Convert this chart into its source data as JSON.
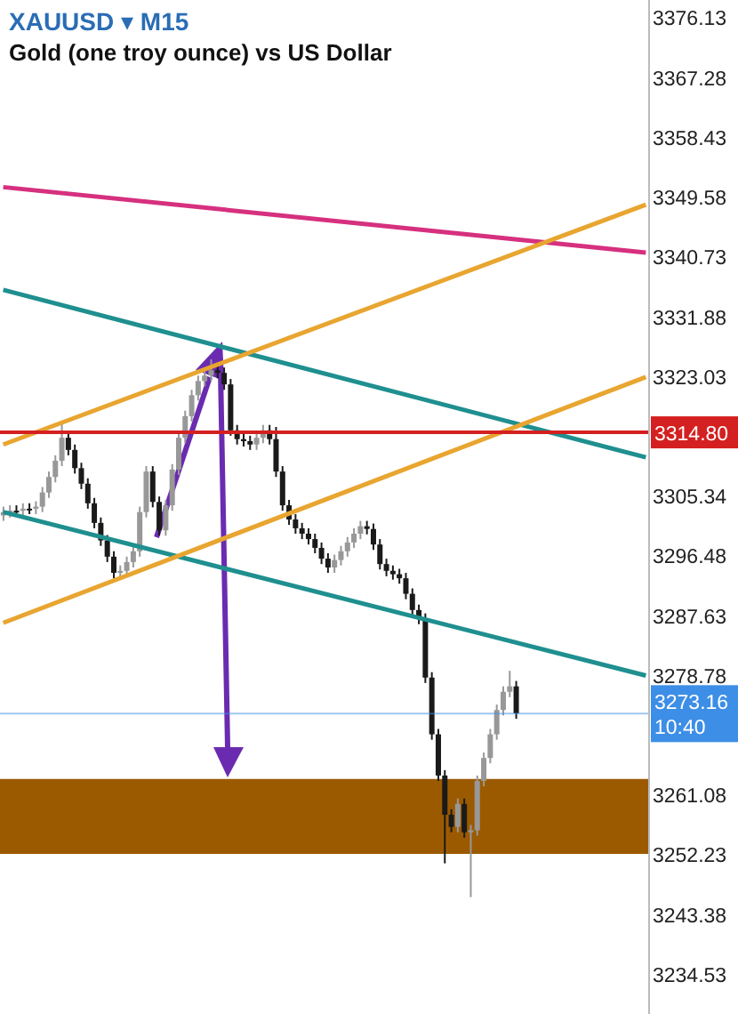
{
  "chart_data": {
    "type": "candlestick",
    "title": "XAUUSD ▾ M15",
    "subtitle": "Gold (one troy ounce) vs US Dollar",
    "colors": [
      "#989898",
      "#989898",
      "#1a1a1a",
      "#989898",
      "#1a1a1a",
      "#989898",
      "#989898",
      "#989898",
      "#989898",
      "#989898",
      "#1a1a1a",
      "#1a1a1a",
      "#1a1a1a",
      "#1a1a1a",
      "#1a1a1a",
      "#1a1a1a",
      "#1a1a1a",
      "#1a1a1a",
      "#989898",
      "#989898",
      "#989898",
      "#989898",
      "#989898",
      "#1a1a1a",
      "#1a1a1a",
      "#989898",
      "#989898",
      "#989898",
      "#989898",
      "#989898",
      "#989898",
      "#989898",
      "#989898",
      "#1a1a1a",
      "#1a1a1a",
      "#1a1a1a",
      "#1a1a1a",
      "#1a1a1a",
      "#1a1a1a",
      "#989898",
      "#989898",
      "#1a1a1a",
      "#1a1a1a",
      "#1a1a1a",
      "#1a1a1a",
      "#1a1a1a",
      "#1a1a1a",
      "#1a1a1a",
      "#1a1a1a",
      "#1a1a1a",
      "#1a1a1a",
      "#989898",
      "#989898",
      "#989898",
      "#989898",
      "#989898",
      "#1a1a1a",
      "#1a1a1a",
      "#1a1a1a",
      "#1a1a1a",
      "#1a1a1a",
      "#1a1a1a",
      "#1a1a1a",
      "#1a1a1a",
      "#1a1a1a",
      "#1a1a1a",
      "#1a1a1a",
      "#1a1a1a",
      "#1a1a1a",
      "#1a1a1a",
      "#989898",
      "#1a1a1a",
      "#989898",
      "#989898",
      "#989898",
      "#989898",
      "#989898",
      "#989898",
      "#989898",
      "#1a1a1a",
      null,
      null,
      null,
      null,
      null,
      null,
      null,
      null,
      null,
      null,
      null,
      null,
      null,
      null,
      null,
      null,
      null,
      null,
      null,
      null
    ],
    "categories": [
      null,
      null,
      null,
      null,
      null,
      null,
      null,
      null,
      null,
      null,
      null,
      null,
      null,
      null,
      null,
      null,
      null,
      null,
      null,
      null,
      null,
      null,
      null,
      null,
      null,
      null,
      null,
      null,
      null,
      null,
      null,
      null,
      null,
      null,
      null,
      null,
      null,
      null,
      null,
      null,
      null,
      null,
      null,
      null,
      null,
      null,
      null,
      null,
      null,
      null,
      null,
      null,
      null,
      null,
      null,
      null,
      null,
      null,
      null,
      null,
      null,
      null,
      null,
      null,
      null,
      null,
      null,
      null,
      null,
      null,
      null,
      null,
      null,
      null,
      null,
      null,
      null,
      null,
      null,
      null,
      null,
      null,
      null,
      null,
      null,
      null,
      null,
      null,
      null,
      null,
      null,
      null,
      null,
      null,
      null,
      null,
      null,
      null,
      null,
      null
    ],
    "ohlc": [
      [
        3302.5,
        3303.8,
        3301.7,
        3303.0
      ],
      [
        3303.0,
        3304.0,
        3302.2,
        3303.2
      ],
      [
        3303.2,
        3304.0,
        3302.4,
        3303.2
      ],
      [
        3303.2,
        3304.3,
        3302.4,
        3303.5
      ],
      [
        3303.5,
        3304.3,
        3302.7,
        3303.5
      ],
      [
        3303.5,
        3304.6,
        3302.7,
        3303.8
      ],
      [
        3303.8,
        3306.7,
        3303.0,
        3305.9
      ],
      [
        3305.9,
        3309.0,
        3305.1,
        3308.2
      ],
      [
        3308.2,
        3311.4,
        3307.4,
        3310.6
      ],
      [
        3310.6,
        3316.0,
        3309.8,
        3314.0
      ],
      [
        3314.0,
        3314.8,
        3311.4,
        3312.2
      ],
      [
        3312.2,
        3313.0,
        3308.7,
        3309.5
      ],
      [
        3309.5,
        3310.3,
        3306.4,
        3307.2
      ],
      [
        3307.2,
        3308.0,
        3303.5,
        3304.3
      ],
      [
        3304.3,
        3305.1,
        3300.6,
        3301.4
      ],
      [
        3301.4,
        3302.2,
        3298.0,
        3298.8
      ],
      [
        3298.8,
        3299.6,
        3295.6,
        3296.4
      ],
      [
        3296.4,
        3297.2,
        3293.2,
        3294.0
      ],
      [
        3294.0,
        3295.1,
        3293.2,
        3294.3
      ],
      [
        3294.3,
        3296.4,
        3293.5,
        3295.6
      ],
      [
        3295.6,
        3298.0,
        3294.8,
        3297.2
      ],
      [
        3297.2,
        3303.8,
        3296.4,
        3303.0
      ],
      [
        3303.0,
        3309.8,
        3302.2,
        3309.0
      ],
      [
        3309.0,
        3309.8,
        3303.7,
        3304.5
      ],
      [
        3304.5,
        3305.3,
        3299.5,
        3300.3
      ],
      [
        3300.3,
        3304.8,
        3299.5,
        3304.0
      ],
      [
        3304.0,
        3310.1,
        3303.2,
        3309.3
      ],
      [
        3309.3,
        3314.8,
        3308.5,
        3314.0
      ],
      [
        3314.0,
        3318.0,
        3313.2,
        3317.2
      ],
      [
        3317.2,
        3321.1,
        3316.4,
        3320.3
      ],
      [
        3320.3,
        3323.2,
        3319.5,
        3322.4
      ],
      [
        3322.4,
        3324.0,
        3321.6,
        3323.2
      ],
      [
        3323.2,
        3325.6,
        3322.4,
        3324.0
      ],
      [
        3324.0,
        3324.8,
        3322.8,
        3323.6
      ],
      [
        3323.6,
        3324.4,
        3321.1,
        3321.9
      ],
      [
        3321.9,
        3322.7,
        3314.3,
        3315.1
      ],
      [
        3315.1,
        3315.9,
        3313.0,
        3313.8
      ],
      [
        3313.8,
        3314.6,
        3312.7,
        3313.5
      ],
      [
        3313.5,
        3314.3,
        3312.2,
        3313.0
      ],
      [
        3313.0,
        3314.8,
        3312.2,
        3314.0
      ],
      [
        3314.0,
        3315.9,
        3313.2,
        3315.1
      ],
      [
        3315.1,
        3315.9,
        3313.0,
        3313.8
      ],
      [
        3313.8,
        3315.6,
        3308.2,
        3309.0
      ],
      [
        3309.0,
        3309.8,
        3303.2,
        3304.0
      ],
      [
        3304.0,
        3304.8,
        3301.1,
        3301.9
      ],
      [
        3301.9,
        3302.7,
        3299.8,
        3300.6
      ],
      [
        3300.6,
        3301.4,
        3299.0,
        3299.8
      ],
      [
        3299.8,
        3300.6,
        3298.2,
        3299.0
      ],
      [
        3299.0,
        3299.8,
        3296.9,
        3297.7
      ],
      [
        3297.7,
        3298.5,
        3295.3,
        3296.1
      ],
      [
        3296.1,
        3296.9,
        3294.0,
        3294.8
      ],
      [
        3294.8,
        3296.7,
        3294.0,
        3295.9
      ],
      [
        3295.9,
        3298.0,
        3295.1,
        3297.2
      ],
      [
        3297.2,
        3299.3,
        3296.4,
        3298.5
      ],
      [
        3298.5,
        3300.6,
        3297.7,
        3299.8
      ],
      [
        3299.8,
        3301.7,
        3299.0,
        3300.9
      ],
      [
        3300.9,
        3301.7,
        3299.7,
        3300.5
      ],
      [
        3300.5,
        3301.3,
        3297.4,
        3298.2
      ],
      [
        3298.2,
        3299.0,
        3294.5,
        3295.3
      ],
      [
        3295.3,
        3296.1,
        3293.5,
        3294.3
      ],
      [
        3294.3,
        3295.1,
        3293.0,
        3293.8
      ],
      [
        3293.8,
        3294.6,
        3292.4,
        3293.2
      ],
      [
        3293.2,
        3294.0,
        3290.1,
        3290.9
      ],
      [
        3290.9,
        3291.7,
        3287.7,
        3288.5
      ],
      [
        3288.5,
        3289.3,
        3286.4,
        3287.2
      ],
      [
        3287.2,
        3288.0,
        3277.7,
        3278.5
      ],
      [
        3278.5,
        3279.3,
        3269.3,
        3270.1
      ],
      [
        3270.1,
        3270.9,
        3263.2,
        3264.0
      ],
      [
        3264.0,
        3264.8,
        3251.0,
        3258.2
      ],
      [
        3258.2,
        3259.0,
        3255.6,
        3256.4
      ],
      [
        3256.4,
        3260.6,
        3255.6,
        3259.8
      ],
      [
        3259.8,
        3260.6,
        3254.8,
        3255.6
      ],
      [
        3255.6,
        3256.7,
        3246.0,
        3255.9
      ],
      [
        3255.9,
        3264.0,
        3255.1,
        3263.2
      ],
      [
        3263.2,
        3267.4,
        3262.4,
        3266.6
      ],
      [
        3266.6,
        3270.9,
        3265.8,
        3270.1
      ],
      [
        3270.1,
        3274.5,
        3269.3,
        3273.7
      ],
      [
        3273.7,
        3277.2,
        3272.9,
        3276.4
      ],
      [
        3276.4,
        3279.5,
        3275.6,
        3277.2
      ],
      [
        3277.2,
        3278.0,
        3272.4,
        3273.2
      ],
      null,
      null,
      null,
      null,
      null,
      null,
      null,
      null,
      null,
      null,
      null,
      null,
      null,
      null,
      null,
      null,
      null,
      null,
      null,
      null
    ],
    "series": [
      {
        "type": "line",
        "color": "#d6307f",
        "values": [
          3351.1,
          null,
          null,
          null,
          null,
          null,
          null,
          null,
          null,
          null,
          null,
          null,
          null,
          null,
          null,
          null,
          null,
          null,
          null,
          null,
          null,
          null,
          null,
          null,
          null,
          null,
          null,
          null,
          null,
          null,
          null,
          null,
          null,
          null,
          null,
          null,
          null,
          null,
          null,
          null,
          null,
          null,
          null,
          null,
          null,
          null,
          null,
          null,
          null,
          null,
          null,
          null,
          null,
          null,
          null,
          null,
          null,
          null,
          null,
          null,
          null,
          null,
          null,
          null,
          null,
          null,
          null,
          null,
          null,
          null,
          null,
          null,
          null,
          null,
          null,
          null,
          null,
          null,
          null,
          null,
          null,
          null,
          null,
          null,
          null,
          null,
          null,
          null,
          null,
          null,
          null,
          null,
          null,
          null,
          null,
          null,
          null,
          null,
          null,
          3341.4
        ]
      },
      {
        "type": "line",
        "color": "#1f8f8f",
        "values": [
          3335.9,
          null,
          null,
          null,
          null,
          null,
          null,
          null,
          null,
          null,
          null,
          null,
          null,
          null,
          null,
          null,
          null,
          null,
          null,
          null,
          null,
          null,
          null,
          null,
          null,
          null,
          null,
          null,
          null,
          null,
          null,
          null,
          null,
          null,
          null,
          null,
          null,
          null,
          null,
          null,
          null,
          null,
          null,
          null,
          null,
          null,
          null,
          null,
          null,
          null,
          null,
          null,
          null,
          null,
          null,
          null,
          null,
          null,
          null,
          null,
          null,
          null,
          null,
          null,
          null,
          null,
          null,
          null,
          null,
          null,
          null,
          null,
          null,
          null,
          null,
          null,
          null,
          null,
          null,
          null,
          null,
          null,
          null,
          null,
          null,
          null,
          null,
          null,
          null,
          null,
          null,
          null,
          null,
          null,
          null,
          null,
          null,
          null,
          null,
          3311.1
        ]
      },
      {
        "type": "line",
        "color": "#1f8f8f",
        "values": [
          3303.0,
          null,
          null,
          null,
          null,
          null,
          null,
          null,
          null,
          null,
          null,
          null,
          null,
          null,
          null,
          null,
          null,
          null,
          null,
          null,
          null,
          null,
          null,
          null,
          null,
          null,
          null,
          null,
          null,
          null,
          null,
          null,
          null,
          null,
          null,
          null,
          null,
          null,
          null,
          null,
          null,
          null,
          null,
          null,
          null,
          null,
          null,
          null,
          null,
          null,
          null,
          null,
          null,
          null,
          null,
          null,
          null,
          null,
          null,
          null,
          null,
          null,
          null,
          null,
          null,
          null,
          null,
          null,
          null,
          null,
          null,
          null,
          null,
          null,
          null,
          null,
          null,
          null,
          null,
          null,
          null,
          null,
          null,
          null,
          null,
          null,
          null,
          null,
          null,
          null,
          null,
          null,
          null,
          null,
          null,
          null,
          null,
          null,
          null,
          3278.8
        ]
      },
      {
        "type": "line",
        "color": "#e8a530",
        "values": [
          3313.0,
          null,
          null,
          null,
          null,
          null,
          null,
          null,
          null,
          null,
          null,
          null,
          null,
          null,
          null,
          null,
          null,
          null,
          null,
          null,
          null,
          null,
          null,
          null,
          null,
          null,
          null,
          null,
          null,
          null,
          null,
          null,
          null,
          null,
          null,
          null,
          null,
          null,
          null,
          null,
          null,
          null,
          null,
          null,
          null,
          null,
          null,
          null,
          null,
          null,
          null,
          null,
          null,
          null,
          null,
          null,
          null,
          null,
          null,
          null,
          null,
          null,
          null,
          null,
          null,
          null,
          null,
          null,
          null,
          null,
          null,
          null,
          null,
          null,
          null,
          null,
          null,
          null,
          null,
          null,
          null,
          null,
          null,
          null,
          null,
          null,
          null,
          null,
          null,
          null,
          null,
          null,
          null,
          null,
          null,
          null,
          null,
          null,
          null,
          3348.5
        ]
      },
      {
        "type": "line",
        "color": "#e8a530",
        "values": [
          3286.6,
          null,
          null,
          null,
          null,
          null,
          null,
          null,
          null,
          null,
          null,
          null,
          null,
          null,
          null,
          null,
          null,
          null,
          null,
          null,
          null,
          null,
          null,
          null,
          null,
          null,
          null,
          null,
          null,
          null,
          null,
          null,
          null,
          null,
          null,
          null,
          null,
          null,
          null,
          null,
          null,
          null,
          null,
          null,
          null,
          null,
          null,
          null,
          null,
          null,
          null,
          null,
          null,
          null,
          null,
          null,
          null,
          null,
          null,
          null,
          null,
          null,
          null,
          null,
          null,
          null,
          null,
          null,
          null,
          null,
          null,
          null,
          null,
          null,
          null,
          null,
          null,
          null,
          null,
          null,
          null,
          null,
          null,
          null,
          null,
          null,
          null,
          null,
          null,
          null,
          null,
          null,
          null,
          null,
          null,
          null,
          null,
          null,
          null,
          3323.0
        ]
      }
    ],
    "ref_lines": [
      {
        "axis": "y",
        "value": 3314.8,
        "label": "3314.80",
        "color": "#d42020"
      },
      {
        "axis": "y",
        "value": 3273.16,
        "label": "3273.16 10:40",
        "color": "#3d8ee6"
      }
    ],
    "bands": [
      {
        "axis": "y",
        "from": 3252.4,
        "to": 3263.5,
        "color": "#9c5a00"
      }
    ],
    "ylim": [
      3228.7,
      3378.8
    ],
    "yticks": [
      3376.13,
      3367.28,
      3358.43,
      3349.58,
      3340.73,
      3331.88,
      3323.03,
      3305.34,
      3296.48,
      3287.63,
      3278.78,
      3261.08,
      3252.23,
      3243.38,
      3234.53
    ],
    "tick_labels": "y",
    "grid": false
  }
}
